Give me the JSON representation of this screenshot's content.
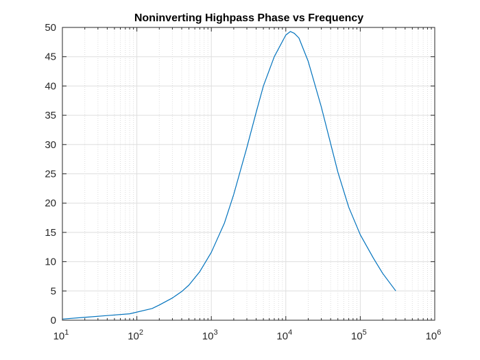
{
  "chart_data": {
    "type": "line",
    "title": "Noninverting Highpass Phase vs Frequency",
    "xlabel": "",
    "ylabel": "",
    "xscale": "log",
    "xlim": [
      10,
      1000000
    ],
    "ylim": [
      0,
      50
    ],
    "grid": true,
    "minor_grid_x": true,
    "x_ticks": [
      {
        "base": "10",
        "exp": "1"
      },
      {
        "base": "10",
        "exp": "2"
      },
      {
        "base": "10",
        "exp": "3"
      },
      {
        "base": "10",
        "exp": "4"
      },
      {
        "base": "10",
        "exp": "5"
      },
      {
        "base": "10",
        "exp": "6"
      }
    ],
    "y_ticks": [
      0,
      5,
      10,
      15,
      20,
      25,
      30,
      35,
      40,
      45,
      50
    ],
    "series": [
      {
        "color": "#0072BD",
        "x": [
          10,
          20,
          40,
          80,
          160,
          200,
          300,
          400,
          500,
          700,
          1000,
          1500,
          2000,
          3000,
          4000,
          5000,
          7000,
          10000,
          11500,
          13000,
          15000,
          20000,
          30000,
          50000,
          70000,
          100000,
          150000,
          200000,
          300000
        ],
        "y": [
          0.2,
          0.5,
          0.8,
          1.1,
          2.0,
          2.6,
          3.8,
          4.9,
          6.0,
          8.3,
          11.6,
          16.6,
          21.5,
          29.5,
          35.5,
          40.0,
          45.0,
          48.7,
          49.3,
          49.0,
          48.2,
          44.2,
          36.4,
          25.3,
          19.3,
          14.6,
          10.6,
          8.0,
          5.0
        ]
      }
    ]
  }
}
